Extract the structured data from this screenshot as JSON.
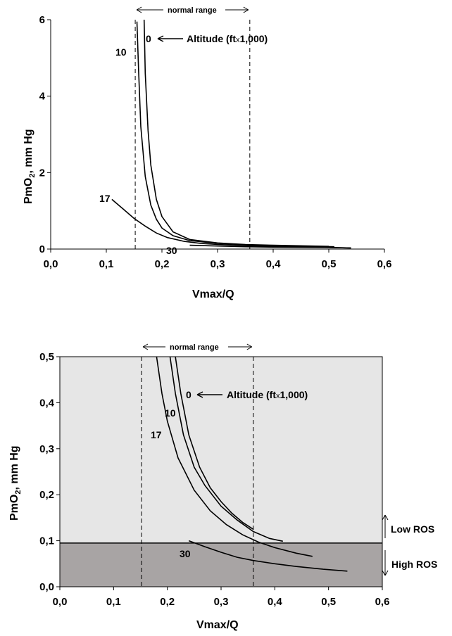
{
  "chart_data": [
    {
      "type": "line",
      "xlabel": "Vmax/Q",
      "ylabel_main": "PmO",
      "ylabel_sub": "2",
      "ylabel_tail": ", mm Hg",
      "xlim": [
        0,
        0.6
      ],
      "ylim": [
        0,
        6
      ],
      "xticks": [
        "0,0",
        "0,1",
        "0,2",
        "0,3",
        "0,4",
        "0,5",
        "0,6"
      ],
      "yticks": [
        "0",
        "2",
        "4",
        "6"
      ],
      "ytick_values": [
        0,
        2,
        4,
        6
      ],
      "normal_range": {
        "label": "normal range",
        "from": 0.152,
        "to": 0.358
      },
      "altitude_label": "Altitude (ft",
      "altitude_times": "x",
      "altitude_tail": "1,000)",
      "series": [
        {
          "name": "0",
          "x": [
            0.168,
            0.17,
            0.175,
            0.18,
            0.19,
            0.2,
            0.22,
            0.25,
            0.3,
            0.35,
            0.4,
            0.5
          ],
          "y": [
            6.0,
            4.6,
            3.1,
            2.2,
            1.3,
            0.85,
            0.45,
            0.25,
            0.16,
            0.12,
            0.1,
            0.07
          ]
        },
        {
          "name": "10",
          "x": [
            0.155,
            0.158,
            0.162,
            0.17,
            0.18,
            0.19,
            0.2,
            0.22,
            0.25,
            0.3,
            0.35,
            0.4,
            0.51
          ],
          "y": [
            5.95,
            4.7,
            3.2,
            1.9,
            1.15,
            0.78,
            0.55,
            0.35,
            0.22,
            0.15,
            0.11,
            0.09,
            0.06
          ]
        },
        {
          "name": "17",
          "x": [
            0.11,
            0.13,
            0.15,
            0.17,
            0.19,
            0.21,
            0.24,
            0.27,
            0.3,
            0.35,
            0.4,
            0.54
          ],
          "y": [
            1.3,
            1.05,
            0.8,
            0.6,
            0.42,
            0.3,
            0.2,
            0.15,
            0.12,
            0.09,
            0.07,
            0.03
          ]
        },
        {
          "name": "30",
          "x": [
            0.25,
            0.3,
            0.35,
            0.4,
            0.5,
            0.54
          ],
          "y": [
            0.1,
            0.08,
            0.06,
            0.05,
            0.04,
            0.03
          ]
        }
      ]
    },
    {
      "type": "line",
      "xlabel": "Vmax/Q",
      "ylabel_main": "PmO",
      "ylabel_sub": "2",
      "ylabel_tail": ", mm Hg",
      "xlim": [
        0,
        0.6
      ],
      "ylim": [
        0,
        0.5
      ],
      "xticks": [
        "0,0",
        "0,1",
        "0,2",
        "0,3",
        "0,4",
        "0,5",
        "0,6"
      ],
      "yticks": [
        "0,0",
        "0,1",
        "0,2",
        "0,3",
        "0,4",
        "0,5"
      ],
      "ytick_values": [
        0,
        0.1,
        0.2,
        0.3,
        0.4,
        0.5
      ],
      "normal_range": {
        "label": "normal range",
        "from": 0.152,
        "to": 0.36
      },
      "threshold": 0.095,
      "altitude_label": "Altitude (ft",
      "altitude_times": "x",
      "altitude_tail": "1,000)",
      "low_ros": "Low ROS",
      "high_ros": "High ROS",
      "colors": {
        "low_band": "#e6e6e6",
        "high_band": "#a8a4a4"
      },
      "series": [
        {
          "name": "0",
          "x": [
            0.215,
            0.225,
            0.24,
            0.26,
            0.28,
            0.3,
            0.32,
            0.34,
            0.36
          ],
          "y": [
            0.5,
            0.42,
            0.33,
            0.26,
            0.215,
            0.185,
            0.16,
            0.14,
            0.125
          ]
        },
        {
          "name": "10",
          "x": [
            0.205,
            0.215,
            0.23,
            0.25,
            0.27,
            0.3,
            0.33,
            0.36,
            0.39,
            0.415
          ],
          "y": [
            0.5,
            0.42,
            0.33,
            0.26,
            0.22,
            0.175,
            0.145,
            0.12,
            0.105,
            0.099
          ]
        },
        {
          "name": "17",
          "x": [
            0.18,
            0.19,
            0.2,
            0.22,
            0.25,
            0.28,
            0.31,
            0.34,
            0.37,
            0.4,
            0.44,
            0.47
          ],
          "y": [
            0.5,
            0.42,
            0.36,
            0.28,
            0.21,
            0.165,
            0.135,
            0.113,
            0.097,
            0.085,
            0.073,
            0.066
          ]
        },
        {
          "name": "30",
          "x": [
            0.24,
            0.27,
            0.3,
            0.33,
            0.36,
            0.4,
            0.44,
            0.49,
            0.535
          ],
          "y": [
            0.1,
            0.087,
            0.075,
            0.064,
            0.057,
            0.05,
            0.044,
            0.038,
            0.034
          ]
        }
      ]
    }
  ]
}
